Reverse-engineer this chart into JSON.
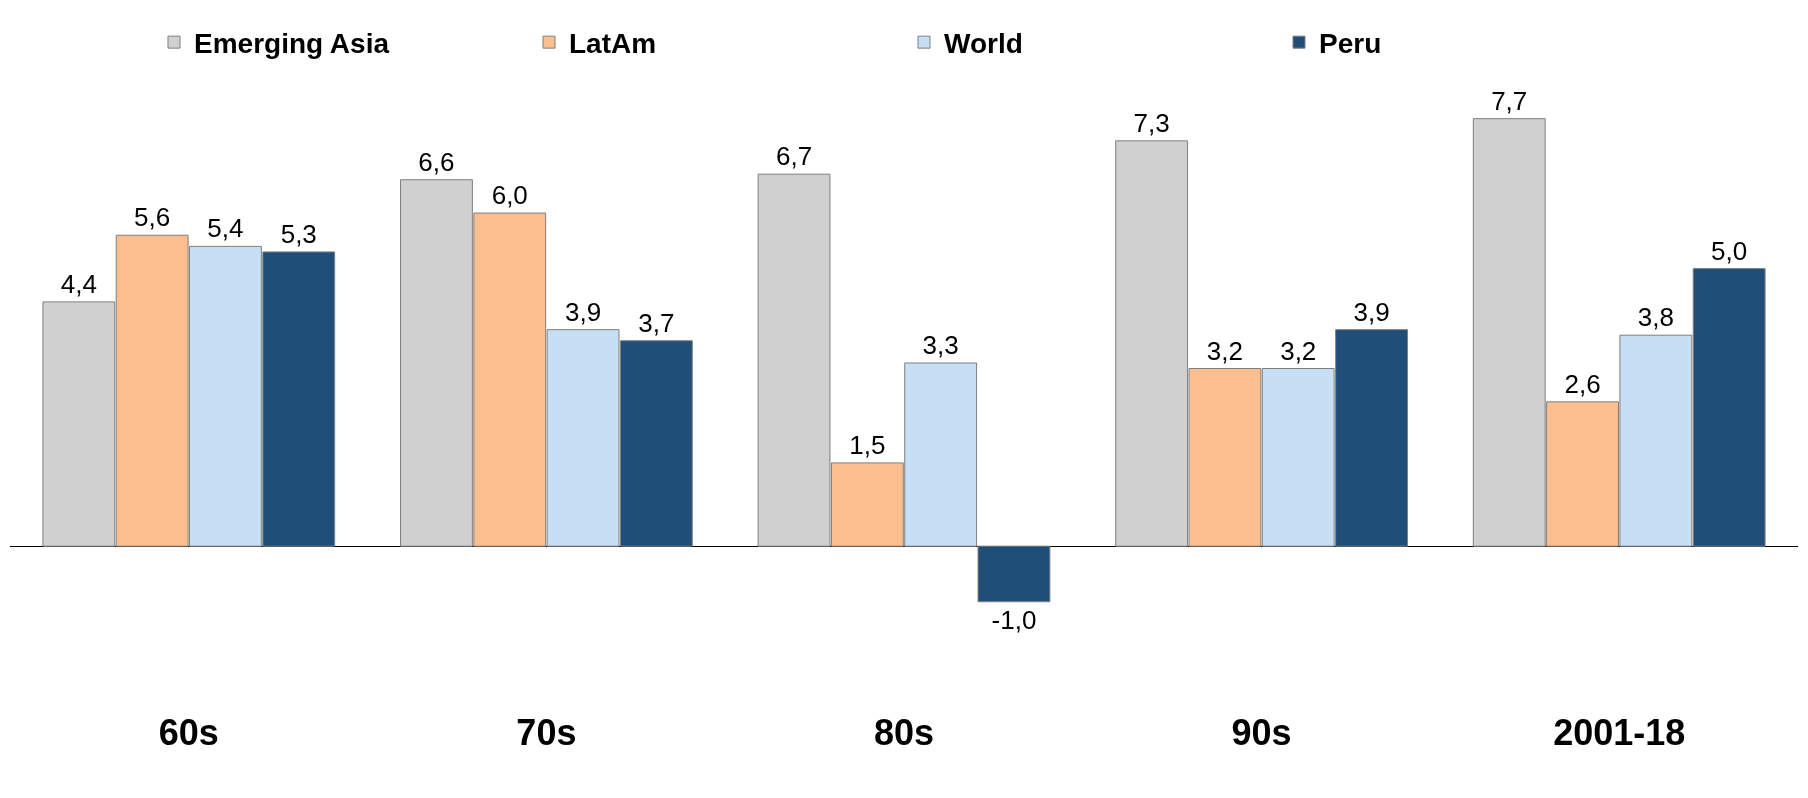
{
  "chart_data": {
    "type": "bar",
    "categories": [
      "60s",
      "70s",
      "80s",
      "90s",
      "2001-18"
    ],
    "series": [
      {
        "name": "Emerging Asia",
        "color": "#d0d0d0",
        "values": [
          4.4,
          6.6,
          6.7,
          7.3,
          7.7
        ],
        "value_labels": [
          "4,4",
          "6,6",
          "6,7",
          "7,3",
          "7,7"
        ]
      },
      {
        "name": "LatAm",
        "color": "#fbbf8f",
        "values": [
          5.6,
          6.0,
          1.5,
          3.2,
          2.6
        ],
        "value_labels": [
          "5,6",
          "6,0",
          "1,5",
          "3,2",
          "2,6"
        ]
      },
      {
        "name": "World",
        "color": "#c6dff5",
        "values": [
          5.4,
          3.9,
          3.3,
          3.2,
          3.8
        ],
        "value_labels": [
          "5,4",
          "3,9",
          "3,3",
          "3,2",
          "3,8"
        ]
      },
      {
        "name": "Peru",
        "color": "#1f4e79",
        "values": [
          5.3,
          3.7,
          -1.0,
          3.9,
          5.0
        ],
        "value_labels": [
          "5,3",
          "3,7",
          "-1,0",
          "3,9",
          "5,0"
        ]
      }
    ],
    "legend": "top",
    "tick_labels": "x"
  }
}
